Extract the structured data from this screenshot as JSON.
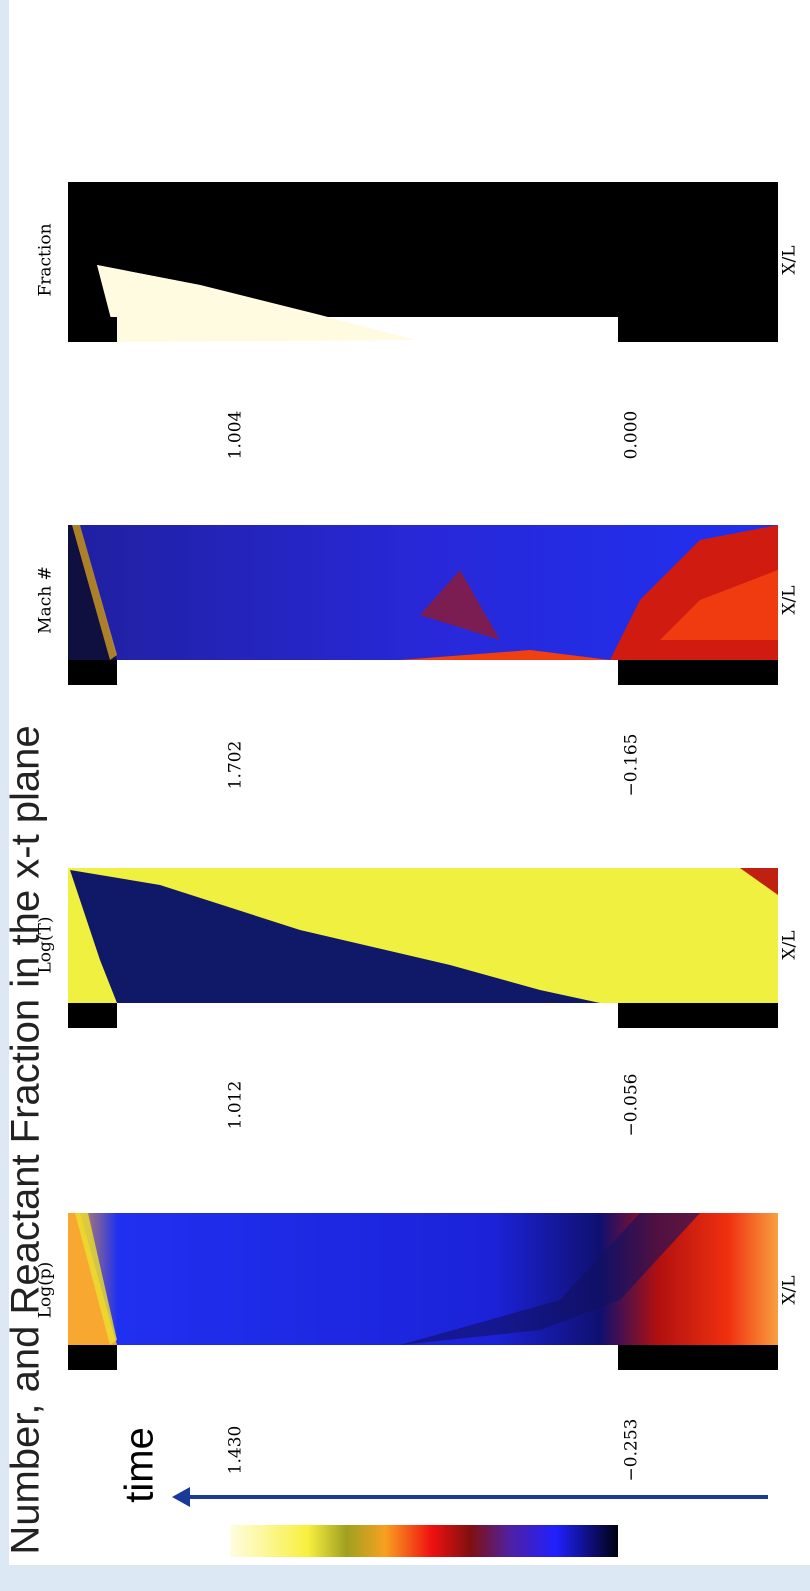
{
  "title": "Number, and Reactant Fraction in the x-t plane",
  "time_label": "time",
  "panels": [
    {
      "label": "Log(p)",
      "axis_label": "X/L",
      "max": "1.430",
      "min": "−0.253"
    },
    {
      "label": "Log(T)",
      "axis_label": "X/L",
      "max": "1.012",
      "min": "−0.056"
    },
    {
      "label": "Mach #",
      "axis_label": "X/L",
      "max": "1.702",
      "min": "−0.165"
    },
    {
      "label": "Fraction",
      "axis_label": "X/L",
      "max": "1.004",
      "min": "0.000"
    }
  ]
}
